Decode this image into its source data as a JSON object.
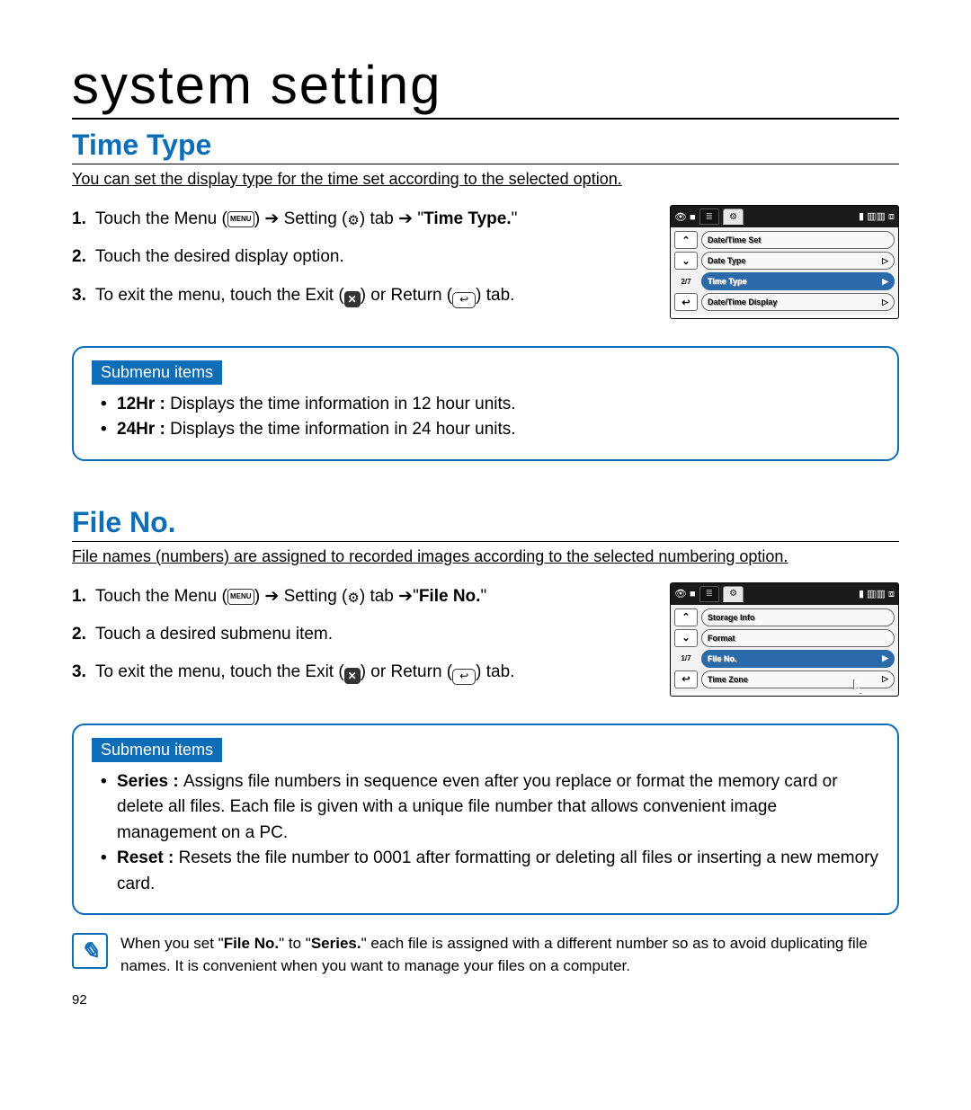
{
  "page": {
    "title": "system setting",
    "number": "92"
  },
  "colors": {
    "accent": "#0d6db6",
    "device_header": "#1a1a1a",
    "device_selected": "#2a6aa8"
  },
  "section1": {
    "heading": "Time Type",
    "blurb": "You can set the display type for the time set according to the selected option.",
    "steps": {
      "s1_a": "Touch the Menu (",
      "s1_b": ") ",
      "s1_c": " Setting (",
      "s1_d": ") tab ",
      "s1_e": " \"",
      "s1_bold": "Time Type.",
      "s1_f": "\"",
      "s2": "Touch the desired display option.",
      "s3_a": "To exit the menu, touch the Exit (",
      "s3_b": ") or Return (",
      "s3_c": ") tab."
    },
    "device": {
      "page_indicator": "2/7",
      "rows": [
        {
          "label": "Date/Time Set",
          "selected": false,
          "icon": ""
        },
        {
          "label": "Date Type",
          "selected": false,
          "icon": "▷"
        },
        {
          "label": "Time Type",
          "selected": true,
          "icon": "▶"
        },
        {
          "label": "Date/Time Display",
          "selected": false,
          "icon": "▷"
        }
      ]
    },
    "submenu": {
      "badge": "Submenu items",
      "items": [
        {
          "bold": "12Hr : ",
          "text": "Displays the time information in 12 hour units."
        },
        {
          "bold": "24Hr : ",
          "text": "Displays the time information in 24 hour units."
        }
      ]
    }
  },
  "section2": {
    "heading": "File No.",
    "blurb": "File names (numbers) are assigned to recorded images according to the selected numbering option.",
    "steps": {
      "s1_a": "Touch the Menu (",
      "s1_b": ") ",
      "s1_c": " Setting (",
      "s1_d": ") tab ",
      "s1_e": "\"",
      "s1_bold": "File No.",
      "s1_f": "\"",
      "s2": "Touch a desired submenu item.",
      "s3_a": "To exit the menu, touch the Exit (",
      "s3_b": ") or Return (",
      "s3_c": ") tab."
    },
    "device": {
      "page_indicator": "1/7",
      "rows": [
        {
          "label": "Storage Info",
          "selected": false,
          "icon": ""
        },
        {
          "label": "Format",
          "selected": false,
          "icon": ""
        },
        {
          "label": "File No.",
          "selected": true,
          "icon": "▶"
        },
        {
          "label": "Time Zone",
          "selected": false,
          "icon": "▷"
        }
      ]
    },
    "submenu": {
      "badge": "Submenu items",
      "items": [
        {
          "bold": "Series : ",
          "text": "Assigns file numbers in sequence even after you replace or format the memory card or delete all files. Each file is given with a unique file number that allows convenient image management on a PC."
        },
        {
          "bold": "Reset : ",
          "text": "Resets the file number to 0001 after formatting or deleting all files or inserting a new memory card."
        }
      ]
    },
    "note": {
      "a": "When you set \"",
      "b1": "File No.",
      "c": "\" to \"",
      "b2": "Series.",
      "d": "\" each file is assigned with a different number so as to avoid duplicating file names. It is convenient when you want to manage your files on a computer."
    }
  },
  "glyphs": {
    "menu_label": "MENU",
    "gear": "⚙",
    "arrow": "➔",
    "exit_x": "✕",
    "return": "↩",
    "up": "⌃",
    "down": "⌄",
    "list": "≣",
    "note": "✎"
  }
}
